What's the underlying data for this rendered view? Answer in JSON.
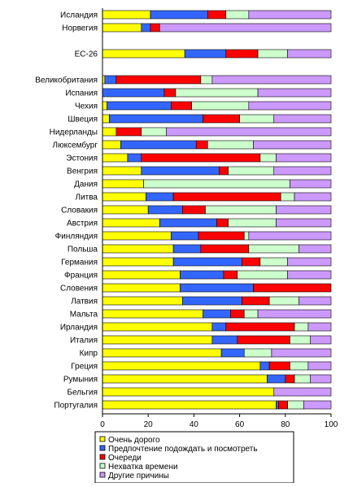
{
  "chart_data": {
    "type": "bar",
    "orientation": "horizontal",
    "stacked": true,
    "xlim": [
      0,
      100
    ],
    "x_ticks": [
      "0",
      "20",
      "40",
      "60",
      "80",
      "100"
    ],
    "legend_position": "bottom",
    "grid": false,
    "categories": [
      "Исландия",
      "Норвегия",
      "",
      "ЕС-26",
      "",
      "Великобритания",
      "Испания",
      "Чехия",
      "Швеция",
      "Нидерланды",
      "Люксембург",
      "Эстония",
      "Венгрия",
      "Дания",
      "Литва",
      "Словакия",
      "Австрия",
      "Финляндия",
      "Польша",
      "Германия",
      "Франция",
      "Словения",
      "Латвия",
      "Мальта",
      "Ирландия",
      "Италия",
      "Кипр",
      "Греция",
      "Румыния",
      "Бельгия",
      "Португалия"
    ],
    "series": [
      {
        "name": "Очень дорого",
        "color": "#ffff00",
        "values": [
          21,
          17,
          null,
          36,
          null,
          1,
          0,
          2,
          3,
          6,
          8,
          11,
          17,
          18,
          19,
          20,
          25,
          30,
          31,
          31,
          34,
          34,
          35,
          44,
          48,
          48,
          52,
          69,
          72,
          75,
          76
        ]
      },
      {
        "name": "Предпочтение подождать и посмотреть",
        "color": "#3366ff",
        "values": [
          25,
          4,
          null,
          18,
          null,
          5,
          27,
          28,
          41,
          0,
          33,
          6,
          34,
          0,
          12,
          15,
          25,
          12,
          12,
          30,
          19,
          32,
          26,
          12,
          6,
          11,
          10,
          4,
          8,
          0,
          1
        ]
      },
      {
        "name": "Очереди",
        "color": "#ff0000",
        "values": [
          8,
          4,
          null,
          14,
          null,
          37,
          5,
          9,
          16,
          11,
          5,
          52,
          4,
          0,
          47,
          10,
          5,
          20,
          21,
          8,
          6,
          34,
          12,
          6,
          30,
          23,
          0,
          9,
          4,
          0,
          4
        ]
      },
      {
        "name": "Нехватка времени",
        "color": "#ccffcc",
        "values": [
          10,
          0,
          null,
          13,
          null,
          5,
          36,
          25,
          15,
          11,
          20,
          7,
          20,
          64,
          6,
          31,
          21,
          2,
          22,
          12,
          22,
          0,
          13,
          6,
          6,
          9,
          12,
          8,
          7,
          0,
          7
        ]
      },
      {
        "name": "Другие причины",
        "color": "#cc99ff",
        "values": [
          36,
          75,
          null,
          19,
          null,
          52,
          32,
          36,
          25,
          72,
          34,
          24,
          25,
          18,
          16,
          24,
          24,
          36,
          14,
          19,
          19,
          0,
          14,
          32,
          10,
          9,
          26,
          10,
          9,
          25,
          12
        ]
      }
    ]
  }
}
